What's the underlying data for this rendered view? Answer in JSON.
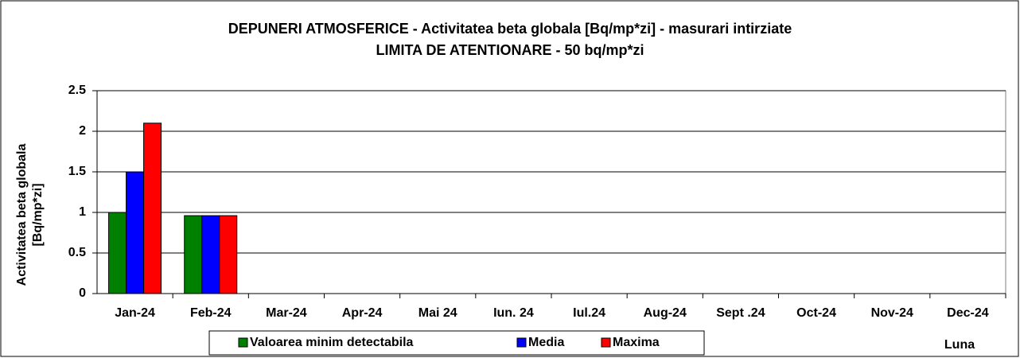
{
  "chart_data": {
    "type": "bar",
    "title": "DEPUNERI ATMOSFERICE - Activitatea beta globala [Bq/mp*zi] - masurari intirziate",
    "subtitle": "LIMITA DE ATENTIONARE - 50 bq/mp*zi",
    "y_label": [
      "Activitatea beta globala",
      "[Bq/mp*zi]"
    ],
    "x_label": "Luna",
    "categories": [
      "Jan-24",
      "Feb-24",
      "Mar-24",
      "Apr-24",
      "Mai 24",
      "Iun. 24",
      "Iul.24",
      "Aug-24",
      "Sept .24",
      "Oct-24",
      "Nov-24",
      "Dec-24"
    ],
    "series": [
      {
        "name": "Valoarea minim detectabila",
        "color": "#008000",
        "values": [
          1,
          0.96,
          null,
          null,
          null,
          null,
          null,
          null,
          null,
          null,
          null,
          null
        ]
      },
      {
        "name": "Media",
        "color": "#0000ff",
        "values": [
          1.5,
          0.96,
          null,
          null,
          null,
          null,
          null,
          null,
          null,
          null,
          null,
          null
        ]
      },
      {
        "name": "Maxima",
        "color": "#ff0000",
        "values": [
          2.1,
          0.96,
          null,
          null,
          null,
          null,
          null,
          null,
          null,
          null,
          null,
          null
        ]
      }
    ],
    "ylim": [
      0,
      2.5
    ],
    "yticks": [
      0,
      0.5,
      1,
      1.5,
      2,
      2.5
    ],
    "grid": true,
    "legend": "bottom"
  }
}
